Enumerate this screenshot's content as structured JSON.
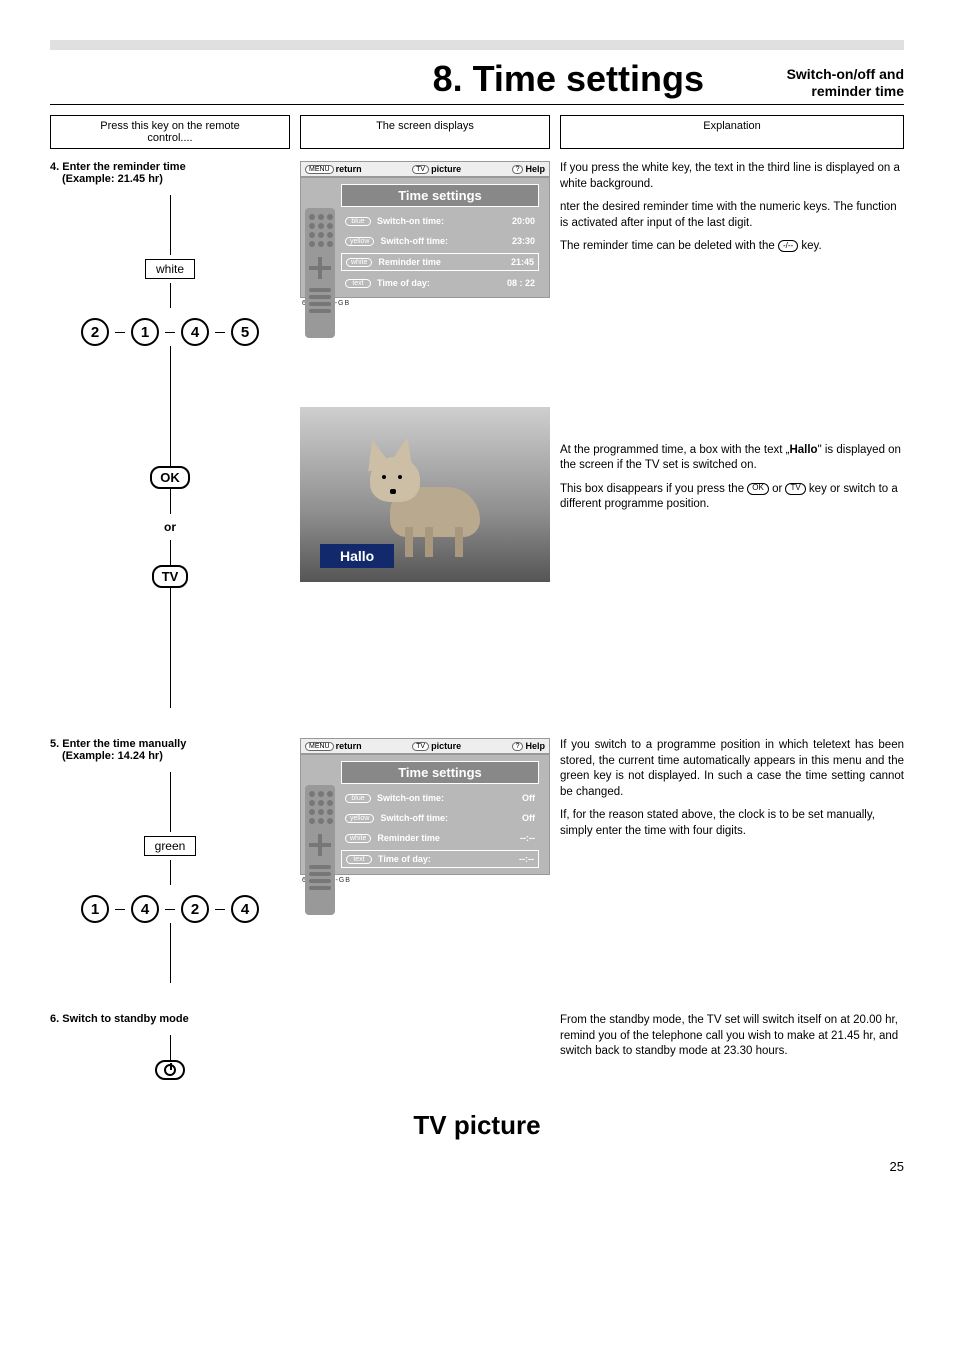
{
  "page_number": "25",
  "chapter": {
    "title": "8. Time settings",
    "subtitle_l1": "Switch-on/off and",
    "subtitle_l2": "reminder time"
  },
  "col_headers": {
    "left_l1": "Press this key on the remote",
    "left_l2": "control....",
    "mid": "The screen displays",
    "right": "Explanation"
  },
  "step4": {
    "title_l1": "4. Enter the reminder time",
    "title_l2": "(Example: 21.45 hr)",
    "key_label": "white",
    "digits": [
      "2",
      "1",
      "4",
      "5"
    ],
    "ok_label": "OK",
    "or_label": "or",
    "tv_label": "TV"
  },
  "osd_top": {
    "return_pill": "MENU",
    "return_txt": "return",
    "picture_pill": "TV",
    "picture_txt": "picture",
    "help_pill": "?",
    "help_txt": "Help"
  },
  "osd1": {
    "title": "Time settings",
    "rows": [
      {
        "pill": "blue",
        "label": "Switch-on time:",
        "val": "20:00",
        "sel": false
      },
      {
        "pill": "yellow",
        "label": "Switch-off time:",
        "val": "23:30",
        "sel": false
      },
      {
        "pill": "white",
        "label": "Reminder time",
        "val": "21:45",
        "sel": true
      },
      {
        "pill": "text",
        "label": "Time of day:",
        "val": "08 : 22",
        "sel": false
      }
    ],
    "code": "698-080-GB"
  },
  "exp4": {
    "p1": "If you press the white key, the text in the third line is displayed on a white background.",
    "p2": "nter the desired reminder time with the numeric keys. The function is activated after input of the last digit.",
    "p3a": "The reminder time can be deleted with the ",
    "p3_pill": "-/--",
    "p3b": " key."
  },
  "hallo": {
    "label": "Hallo",
    "p1a": "At the programmed time, a box with the text „",
    "p1b": "Hallo",
    "p1c": "\" is displayed on the screen if the TV set is switched on.",
    "p2a": "This box disappears if you press the ",
    "p2_pill1": "OK",
    "p2b": " or ",
    "p2_pill2": "TV",
    "p2c": "  key  or switch to a different programme position."
  },
  "step5": {
    "title_l1": "5. Enter the time manually",
    "title_l2": "(Example: 14.24 hr)",
    "key_label": "green",
    "digits": [
      "1",
      "4",
      "2",
      "4"
    ]
  },
  "osd2": {
    "title": "Time settings",
    "rows": [
      {
        "pill": "blue",
        "label": "Switch-on time:",
        "val": "Off",
        "sel": false
      },
      {
        "pill": "yellow",
        "label": "Switch-off time:",
        "val": "Off",
        "sel": false
      },
      {
        "pill": "white",
        "label": "Reminder time",
        "val": "--:--",
        "sel": false
      },
      {
        "pill": "text",
        "label": "Time of day:",
        "val": "--:--",
        "sel": true
      }
    ],
    "code": "698-08E-GB"
  },
  "exp5": {
    "p1": "If you switch to a programme position in which teletext has been stored, the current time automatically appears in this menu and the green key is not displayed. In such a case the time setting cannot be changed.",
    "p2": "If, for the reason stated above, the clock is to be set manually, simply enter the time with four digits."
  },
  "step6": {
    "title": "6. Switch to standby mode",
    "exp": "From the standby mode, the TV set will switch itself on at 20.00 hr, remind you of the telephone call you wish to make at 21.45 hr, and switch back to standby mode at 23.30 hours."
  },
  "footer": {
    "tv_picture": "TV picture"
  },
  "colors": {
    "osd_bg": "#b8b8b8",
    "osd_title_bg": "#888888",
    "hallo_bg": "#122a6b"
  }
}
